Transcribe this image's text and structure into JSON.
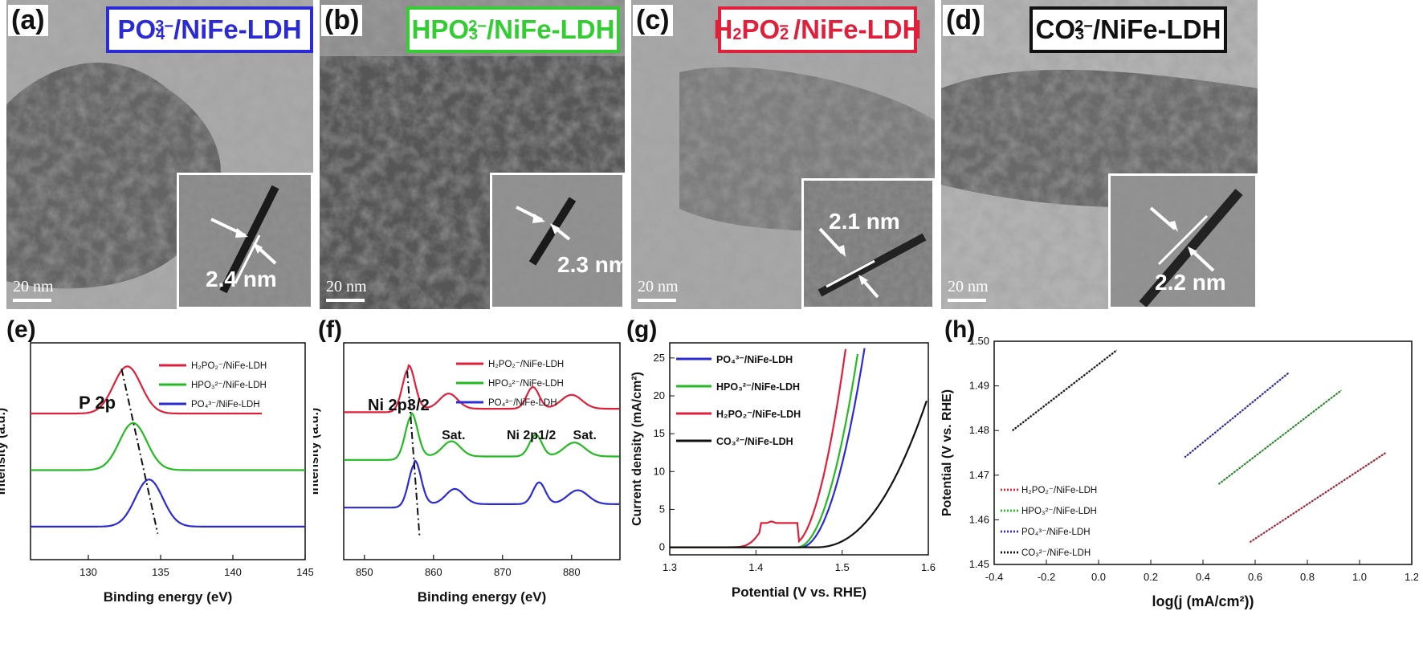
{
  "panels": {
    "a": {
      "label": "(a)",
      "species_main": "PO",
      "species_sub": "4",
      "species_sup": "3−",
      "species_rest": "/NiFe-LDH",
      "color": "#2b2bd6",
      "thickness": "2.4 nm",
      "scale": "20 nm"
    },
    "b": {
      "label": "(b)",
      "species_main": "HPO",
      "species_sub": "3",
      "species_sup": "2−",
      "species_rest": "/NiFe-LDH",
      "color": "#33cc33",
      "thickness": "2.3 nm",
      "scale": "20 nm"
    },
    "c": {
      "label": "(c)",
      "species_main": "H",
      "species_sub": "2",
      "species_mid": "PO",
      "species_sub2": "2",
      "species_sup": "−",
      "species_rest": "/NiFe-LDH",
      "color": "#e0203a",
      "thickness": "2.1 nm",
      "scale": "20 nm"
    },
    "d": {
      "label": "(d)",
      "species_main": "CO",
      "species_sub": "3",
      "species_sup": "2−",
      "species_rest": "/NiFe-LDH",
      "color": "#111111",
      "thickness": "2.2 nm",
      "scale": "20 nm"
    }
  },
  "legend_names": {
    "h2po2": "H₂PO₂⁻/NiFe-LDH",
    "hpo3": "HPO₃²⁻/NiFe-LDH",
    "po4": "PO₄³⁻/NiFe-LDH",
    "co3": "CO₃²⁻/NiFe-LDH"
  },
  "colors": {
    "red": "#e0203a",
    "green": "#22bb22",
    "blue": "#2b2bd6",
    "black": "#111111"
  },
  "chart_data": [
    {
      "id": "e",
      "label": "(e)",
      "type": "line",
      "title": "",
      "annotation": "P 2p",
      "xlabel": "Binding energy (eV)",
      "ylabel": "Intensity (a.u.)",
      "xlim": [
        126,
        145
      ],
      "xticks": [
        130,
        135,
        140,
        145
      ],
      "series": [
        {
          "name": "H₂PO₂⁻/NiFe-LDH",
          "color": "#e0203a",
          "peak_x": 132.7,
          "baseline": 3.1,
          "height": 1.0,
          "x_end": 142
        },
        {
          "name": "HPO₃²⁻/NiFe-LDH",
          "color": "#22bb22",
          "peak_x": 133.1,
          "baseline": 1.9,
          "height": 1.0,
          "x_end": 145
        },
        {
          "name": "PO₄³⁻/NiFe-LDH",
          "color": "#2b2bd6",
          "peak_x": 134.2,
          "baseline": 0.7,
          "height": 1.0,
          "x_end": 145
        }
      ]
    },
    {
      "id": "f",
      "label": "(f)",
      "type": "line",
      "annotations": [
        "Ni 2p3/2",
        "Sat.",
        "Ni 2p1/2",
        "Sat."
      ],
      "xlabel": "Binding energy (eV)",
      "ylabel": "Intensity (a.u.)",
      "xlim": [
        847,
        887
      ],
      "xticks": [
        850,
        860,
        870,
        880
      ],
      "series": [
        {
          "name": "H₂PO₂⁻/NiFe-LDH",
          "color": "#e0203a",
          "main_peak": 856.4
        },
        {
          "name": "HPO₃²⁻/NiFe-LDH",
          "color": "#22bb22",
          "main_peak": 856.8
        },
        {
          "name": "PO₄³⁻/NiFe-LDH",
          "color": "#2b2bd6",
          "main_peak": 857.3
        }
      ]
    },
    {
      "id": "g",
      "label": "(g)",
      "type": "line",
      "xlabel": "Potential (V vs. RHE)",
      "ylabel": "Current density (mA/cm²)",
      "xlim": [
        1.3,
        1.6
      ],
      "xticks": [
        "1.3",
        "1.4",
        "1.5",
        "1.6"
      ],
      "ylim": [
        -1,
        27
      ],
      "yticks": [
        0,
        5,
        10,
        15,
        20,
        25
      ],
      "series": [
        {
          "name": "PO₄³⁻/NiFe-LDH",
          "color": "#2b2bd6",
          "onset": 1.452,
          "rise": 1.527
        },
        {
          "name": "HPO₃²⁻/NiFe-LDH",
          "color": "#22bb22",
          "onset": 1.448,
          "rise": 1.52
        },
        {
          "name": "H₂PO₂⁻/NiFe-LDH",
          "color": "#e0203a",
          "onset": 1.44,
          "rise": 1.505
        },
        {
          "name": "CO₃²⁻/NiFe-LDH",
          "color": "#111111",
          "onset": 1.47,
          "rise": 1.6
        }
      ]
    },
    {
      "id": "h",
      "label": "(h)",
      "type": "line",
      "xlabel": "log(j (mA/cm²))",
      "ylabel": "Potential (V vs. RHE)",
      "xlim": [
        -0.4,
        1.2
      ],
      "xticks": [
        "-0.4",
        "-0.2",
        "0.0",
        "0.2",
        "0.4",
        "0.6",
        "0.8",
        "1.0",
        "1.2"
      ],
      "ylim": [
        1.45,
        1.5
      ],
      "yticks": [
        "1.45",
        "1.46",
        "1.47",
        "1.48",
        "1.49",
        "1.50"
      ],
      "series": [
        {
          "name": "H₂PO₂⁻/NiFe-LDH",
          "color": "#e0203a",
          "x": [
            0.58,
            1.1
          ],
          "y": [
            1.455,
            1.475
          ]
        },
        {
          "name": "HPO₃²⁻/NiFe-LDH",
          "color": "#22bb22",
          "x": [
            0.46,
            0.93
          ],
          "y": [
            1.468,
            1.489
          ]
        },
        {
          "name": "PO₄³⁻/NiFe-LDH",
          "color": "#2b2bd6",
          "x": [
            0.33,
            0.73
          ],
          "y": [
            1.474,
            1.493
          ]
        },
        {
          "name": "CO₃²⁻/NiFe-LDH",
          "color": "#111111",
          "x": [
            -0.33,
            0.07
          ],
          "y": [
            1.48,
            1.498
          ]
        }
      ]
    }
  ]
}
